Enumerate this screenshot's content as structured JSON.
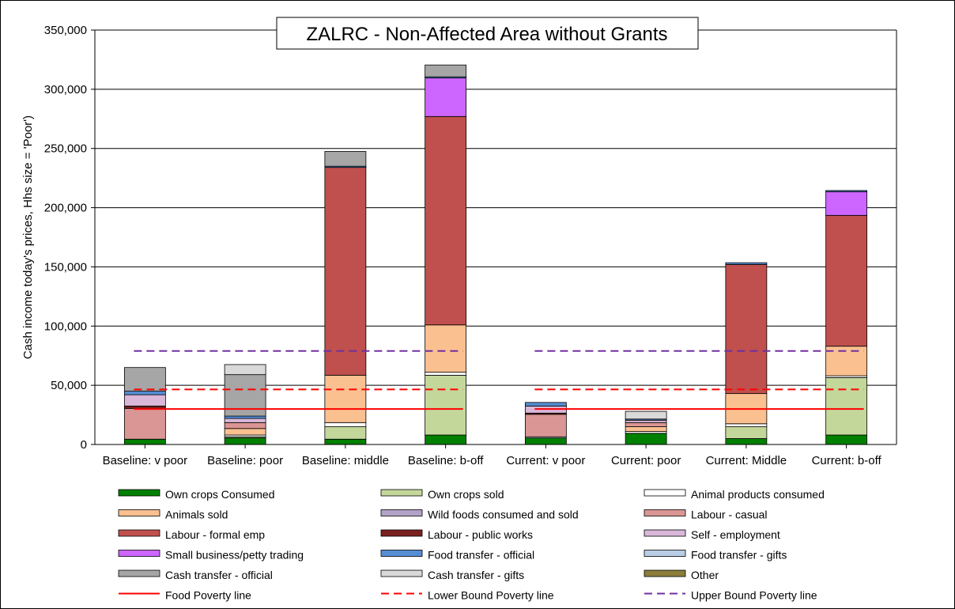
{
  "chart_data": {
    "type": "bar",
    "stacked": true,
    "title": "ZALRC - Non-Affected Area without Grants",
    "ylabel": "Cash income today's prices, Hhs size = 'Poor')",
    "xlabel": "",
    "ylim": [
      0,
      350000
    ],
    "y_ticks": [
      "0",
      "50,000",
      "100,000",
      "150,000",
      "200,000",
      "250,000",
      "300,000",
      "350,000"
    ],
    "y_tick_values": [
      0,
      50000,
      100000,
      150000,
      200000,
      250000,
      300000,
      350000
    ],
    "grid": true,
    "legend_position": "bottom",
    "categories": [
      "Baseline: v poor",
      "Baseline: poor",
      "Baseline: middle",
      "Baseline: b-off",
      "Current: v poor",
      "Current: poor",
      "Current: Middle",
      "Current: b-off"
    ],
    "series": [
      {
        "name": "Own crops Consumed",
        "color": "#008000",
        "values": [
          4500,
          5500,
          4500,
          8000,
          5500,
          9500,
          5000,
          8000
        ]
      },
      {
        "name": "Own crops sold",
        "color": "#c4d79b",
        "values": [
          0,
          1000,
          10500,
          50500,
          0,
          0,
          10000,
          48500
        ]
      },
      {
        "name": "Animal products consumed",
        "color": "#ffffff",
        "values": [
          0,
          1500,
          3500,
          2500,
          1000,
          1500,
          2500,
          1500
        ]
      },
      {
        "name": "Animals sold",
        "color": "#fac090",
        "values": [
          0,
          5500,
          40000,
          40000,
          0,
          4000,
          25500,
          25000
        ]
      },
      {
        "name": "Wild foods consumed and sold",
        "color": "#b3a2c7",
        "values": [
          0,
          0,
          0,
          0,
          0,
          0,
          0,
          0
        ]
      },
      {
        "name": "Labour - casual",
        "color": "#da9694",
        "values": [
          26000,
          5000,
          0,
          0,
          19000,
          3500,
          0,
          0
        ]
      },
      {
        "name": "Labour - formal emp",
        "color": "#c0504d",
        "values": [
          0,
          0,
          175500,
          176000,
          0,
          0,
          109000,
          110500
        ]
      },
      {
        "name": "Labour - public works",
        "color": "#7b2020",
        "values": [
          2000,
          0,
          0,
          0,
          1000,
          0,
          0,
          0
        ]
      },
      {
        "name": "Self - employment",
        "color": "#d9b8d9",
        "values": [
          9500,
          3500,
          0,
          0,
          6000,
          2000,
          0,
          0
        ]
      },
      {
        "name": "Small business/petty trading",
        "color": "#cc66ff",
        "values": [
          0,
          0,
          0,
          32500,
          0,
          0,
          0,
          20000
        ]
      },
      {
        "name": "Food transfer - official",
        "color": "#558ed5",
        "values": [
          3000,
          2000,
          1000,
          1000,
          3000,
          1000,
          1500,
          1000
        ]
      },
      {
        "name": "Food transfer - gifts",
        "color": "#b9cde5",
        "values": [
          0,
          0,
          0,
          0,
          0,
          0,
          0,
          0
        ]
      },
      {
        "name": "Cash transfer - official",
        "color": "#a6a6a6",
        "values": [
          20000,
          35000,
          12500,
          10000,
          0,
          0,
          0,
          0
        ]
      },
      {
        "name": "Cash transfer - gifts",
        "color": "#d9d9d9",
        "values": [
          0,
          8500,
          0,
          0,
          0,
          6500,
          0,
          0
        ]
      },
      {
        "name": "Other",
        "color": "#8b7d3a",
        "values": [
          0,
          0,
          0,
          0,
          0,
          0,
          0,
          0
        ]
      }
    ],
    "lines": [
      {
        "name": "Food Poverty line",
        "color": "#ff0000",
        "style": "solid",
        "value": 30000
      },
      {
        "name": "Lower Bound Poverty line",
        "color": "#ff0000",
        "style": "dashed",
        "value": 46500
      },
      {
        "name": "Upper Bound Poverty line",
        "color": "#7030a0",
        "style": "dashed",
        "value": 79000
      }
    ]
  }
}
